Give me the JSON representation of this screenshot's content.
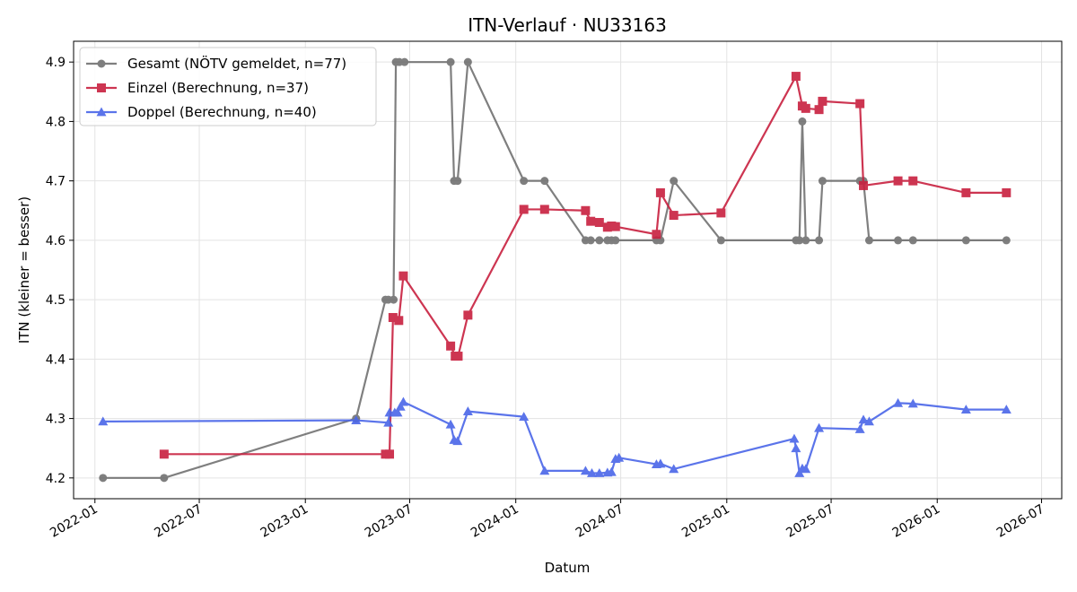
{
  "chart_data": {
    "type": "line",
    "title": "ITN-Verlauf · NU33163",
    "xlabel": "Datum",
    "ylabel": "ITN  (kleiner = besser)",
    "xlim": [
      "2021-11-25",
      "2026-08-05"
    ],
    "ylim": [
      4.165,
      4.935
    ],
    "x_ticks": [
      "2022-01-01",
      "2022-07-01",
      "2023-01-01",
      "2023-07-01",
      "2024-01-01",
      "2024-07-01",
      "2025-01-01",
      "2025-07-01",
      "2026-01-01",
      "2026-07-01"
    ],
    "x_tick_labels": [
      "2022-01",
      "2022-07",
      "2023-01",
      "2023-07",
      "2024-01",
      "2024-07",
      "2025-01",
      "2025-07",
      "2026-01",
      "2026-07"
    ],
    "y_ticks": [
      4.2,
      4.3,
      4.4,
      4.5,
      4.6,
      4.7,
      4.8,
      4.9
    ],
    "y_tick_labels": [
      "4.2",
      "4.3",
      "4.4",
      "4.5",
      "4.6",
      "4.7",
      "4.8",
      "4.9"
    ],
    "grid": true,
    "legend_position": "top-left",
    "series": [
      {
        "name": "Gesamt (NÖTV gemeldet, n=77)",
        "color": "#555555",
        "marker": "circle",
        "points": [
          [
            "2022-01-15",
            4.2
          ],
          [
            "2022-05-01",
            4.2
          ],
          [
            "2023-03-30",
            4.3
          ],
          [
            "2023-05-20",
            4.5
          ],
          [
            "2023-05-25",
            4.5
          ],
          [
            "2023-06-03",
            4.5
          ],
          [
            "2023-06-07",
            4.9
          ],
          [
            "2023-06-13",
            4.9
          ],
          [
            "2023-06-22",
            4.9
          ],
          [
            "2023-09-10",
            4.9
          ],
          [
            "2023-09-16",
            4.7
          ],
          [
            "2023-09-22",
            4.7
          ],
          [
            "2023-10-10",
            4.9
          ],
          [
            "2024-01-15",
            4.7
          ],
          [
            "2024-02-20",
            4.7
          ],
          [
            "2024-05-01",
            4.6
          ],
          [
            "2024-05-10",
            4.6
          ],
          [
            "2024-05-25",
            4.6
          ],
          [
            "2024-06-08",
            4.6
          ],
          [
            "2024-06-15",
            4.6
          ],
          [
            "2024-06-22",
            4.6
          ],
          [
            "2024-09-01",
            4.6
          ],
          [
            "2024-09-08",
            4.6
          ],
          [
            "2024-10-01",
            4.7
          ],
          [
            "2024-12-22",
            4.6
          ],
          [
            "2025-05-01",
            4.6
          ],
          [
            "2025-05-07",
            4.6
          ],
          [
            "2025-05-12",
            4.8
          ],
          [
            "2025-05-18",
            4.6
          ],
          [
            "2025-06-10",
            4.6
          ],
          [
            "2025-06-16",
            4.7
          ],
          [
            "2025-08-20",
            4.7
          ],
          [
            "2025-08-26",
            4.7
          ],
          [
            "2025-09-05",
            4.6
          ],
          [
            "2025-10-25",
            4.6
          ],
          [
            "2025-11-20",
            4.6
          ],
          [
            "2026-02-20",
            4.6
          ],
          [
            "2026-05-01",
            4.6
          ]
        ]
      },
      {
        "name": "Einzel (Berechnung, n=37)",
        "color": "#c8203f",
        "marker": "square",
        "points": [
          [
            "2022-05-01",
            4.24
          ],
          [
            "2023-05-20",
            4.24
          ],
          [
            "2023-05-27",
            4.24
          ],
          [
            "2023-06-02",
            4.47
          ],
          [
            "2023-06-12",
            4.465
          ],
          [
            "2023-06-20",
            4.54
          ],
          [
            "2023-09-10",
            4.422
          ],
          [
            "2023-09-18",
            4.405
          ],
          [
            "2023-09-23",
            4.405
          ],
          [
            "2023-10-10",
            4.474
          ],
          [
            "2024-01-15",
            4.652
          ],
          [
            "2024-02-20",
            4.652
          ],
          [
            "2024-05-01",
            4.65
          ],
          [
            "2024-05-10",
            4.632
          ],
          [
            "2024-05-25",
            4.63
          ],
          [
            "2024-06-08",
            4.622
          ],
          [
            "2024-06-15",
            4.624
          ],
          [
            "2024-06-22",
            4.623
          ],
          [
            "2024-09-01",
            4.61
          ],
          [
            "2024-09-08",
            4.68
          ],
          [
            "2024-10-01",
            4.642
          ],
          [
            "2024-12-22",
            4.646
          ],
          [
            "2025-05-01",
            4.876
          ],
          [
            "2025-05-12",
            4.826
          ],
          [
            "2025-05-18",
            4.822
          ],
          [
            "2025-06-10",
            4.82
          ],
          [
            "2025-06-16",
            4.834
          ],
          [
            "2025-08-20",
            4.83
          ],
          [
            "2025-08-26",
            4.692
          ],
          [
            "2025-10-25",
            4.7
          ],
          [
            "2025-11-20",
            4.7
          ],
          [
            "2026-02-20",
            4.68
          ],
          [
            "2026-05-01",
            4.68
          ]
        ]
      },
      {
        "name": "Doppel (Berechnung, n=40)",
        "color": "#4a66e8",
        "marker": "triangle",
        "points": [
          [
            "2022-01-15",
            4.295
          ],
          [
            "2023-03-30",
            4.297
          ],
          [
            "2023-05-25",
            4.293
          ],
          [
            "2023-05-27",
            4.31
          ],
          [
            "2023-06-05",
            4.31
          ],
          [
            "2023-06-10",
            4.31
          ],
          [
            "2023-06-15",
            4.32
          ],
          [
            "2023-06-20",
            4.328
          ],
          [
            "2023-09-10",
            4.29
          ],
          [
            "2023-09-16",
            4.264
          ],
          [
            "2023-09-22",
            4.262
          ],
          [
            "2023-10-10",
            4.312
          ],
          [
            "2024-01-15",
            4.303
          ],
          [
            "2024-02-20",
            4.212
          ],
          [
            "2024-05-01",
            4.212
          ],
          [
            "2024-05-12",
            4.208
          ],
          [
            "2024-05-25",
            4.208
          ],
          [
            "2024-06-08",
            4.209
          ],
          [
            "2024-06-15",
            4.21
          ],
          [
            "2024-06-22",
            4.232
          ],
          [
            "2024-06-28",
            4.234
          ],
          [
            "2024-09-01",
            4.223
          ],
          [
            "2024-09-08",
            4.224
          ],
          [
            "2024-10-01",
            4.215
          ],
          [
            "2025-04-28",
            4.266
          ],
          [
            "2025-05-01",
            4.25
          ],
          [
            "2025-05-07",
            4.208
          ],
          [
            "2025-05-12",
            4.216
          ],
          [
            "2025-05-18",
            4.215
          ],
          [
            "2025-06-10",
            4.284
          ],
          [
            "2025-08-20",
            4.282
          ],
          [
            "2025-08-26",
            4.298
          ],
          [
            "2025-09-05",
            4.295
          ],
          [
            "2025-10-25",
            4.326
          ],
          [
            "2025-11-20",
            4.325
          ],
          [
            "2026-02-20",
            4.315
          ],
          [
            "2026-05-01",
            4.315
          ]
        ]
      }
    ]
  }
}
